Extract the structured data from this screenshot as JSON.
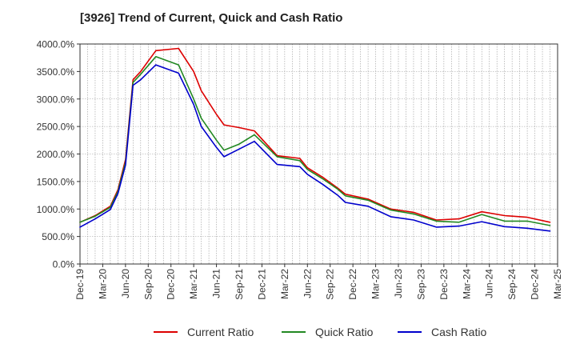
{
  "chart_data": {
    "type": "line",
    "title": "[3926]  Trend of Current, Quick and Cash Ratio",
    "xlabel": "",
    "ylabel": "",
    "ylim": [
      0,
      4000
    ],
    "yticks": [
      "0.0%",
      "500.0%",
      "1000.0%",
      "1500.0%",
      "2000.0%",
      "2500.0%",
      "3000.0%",
      "3500.0%",
      "4000.0%"
    ],
    "ytick_values": [
      0,
      500,
      1000,
      1500,
      2000,
      2500,
      3000,
      3500,
      4000
    ],
    "x_tick_labels": [
      "Dec-19",
      "Mar-20",
      "Jun-20",
      "Sep-20",
      "Dec-20",
      "Mar-21",
      "Jun-21",
      "Sep-21",
      "Dec-21",
      "Mar-22",
      "Jun-22",
      "Sep-22",
      "Dec-22",
      "Mar-23",
      "Jun-23",
      "Sep-23",
      "Dec-23",
      "Mar-24",
      "Jun-24",
      "Sep-24",
      "Dec-24",
      "Mar-25"
    ],
    "x_month_range": [
      0,
      63
    ],
    "grid": true,
    "legend_position": "bottom",
    "series": [
      {
        "name": "Current Ratio",
        "color": "#dd0000",
        "points": [
          [
            0,
            760
          ],
          [
            2,
            880
          ],
          [
            4,
            1050
          ],
          [
            5,
            1350
          ],
          [
            6,
            1900
          ],
          [
            7,
            3350
          ],
          [
            8,
            3500
          ],
          [
            10,
            3880
          ],
          [
            13,
            3920
          ],
          [
            15,
            3500
          ],
          [
            16,
            3150
          ],
          [
            18,
            2720
          ],
          [
            19,
            2530
          ],
          [
            21,
            2480
          ],
          [
            23,
            2420
          ],
          [
            26,
            1970
          ],
          [
            29,
            1920
          ],
          [
            30,
            1750
          ],
          [
            32,
            1580
          ],
          [
            34,
            1380
          ],
          [
            35,
            1270
          ],
          [
            38,
            1180
          ],
          [
            41,
            1000
          ],
          [
            44,
            940
          ],
          [
            47,
            800
          ],
          [
            50,
            820
          ],
          [
            53,
            950
          ],
          [
            56,
            880
          ],
          [
            59,
            850
          ],
          [
            62,
            760
          ]
        ]
      },
      {
        "name": "Quick Ratio",
        "color": "#228822",
        "points": [
          [
            0,
            760
          ],
          [
            2,
            870
          ],
          [
            4,
            1030
          ],
          [
            5,
            1320
          ],
          [
            6,
            1850
          ],
          [
            7,
            3300
          ],
          [
            8,
            3450
          ],
          [
            10,
            3770
          ],
          [
            13,
            3620
          ],
          [
            15,
            3000
          ],
          [
            16,
            2650
          ],
          [
            18,
            2250
          ],
          [
            19,
            2070
          ],
          [
            21,
            2180
          ],
          [
            23,
            2350
          ],
          [
            26,
            1950
          ],
          [
            29,
            1880
          ],
          [
            30,
            1720
          ],
          [
            32,
            1550
          ],
          [
            34,
            1360
          ],
          [
            35,
            1240
          ],
          [
            38,
            1160
          ],
          [
            41,
            980
          ],
          [
            44,
            910
          ],
          [
            47,
            780
          ],
          [
            50,
            760
          ],
          [
            53,
            900
          ],
          [
            56,
            780
          ],
          [
            59,
            780
          ],
          [
            62,
            700
          ]
        ]
      },
      {
        "name": "Cash Ratio",
        "color": "#0000cc",
        "points": [
          [
            0,
            670
          ],
          [
            2,
            820
          ],
          [
            4,
            990
          ],
          [
            5,
            1280
          ],
          [
            6,
            1800
          ],
          [
            7,
            3250
          ],
          [
            8,
            3350
          ],
          [
            10,
            3620
          ],
          [
            13,
            3470
          ],
          [
            15,
            2900
          ],
          [
            16,
            2500
          ],
          [
            18,
            2120
          ],
          [
            19,
            1950
          ],
          [
            21,
            2090
          ],
          [
            23,
            2230
          ],
          [
            26,
            1810
          ],
          [
            29,
            1770
          ],
          [
            30,
            1630
          ],
          [
            32,
            1450
          ],
          [
            34,
            1250
          ],
          [
            35,
            1120
          ],
          [
            38,
            1050
          ],
          [
            41,
            860
          ],
          [
            44,
            800
          ],
          [
            47,
            670
          ],
          [
            50,
            690
          ],
          [
            53,
            770
          ],
          [
            56,
            680
          ],
          [
            59,
            650
          ],
          [
            62,
            600
          ]
        ]
      }
    ]
  }
}
